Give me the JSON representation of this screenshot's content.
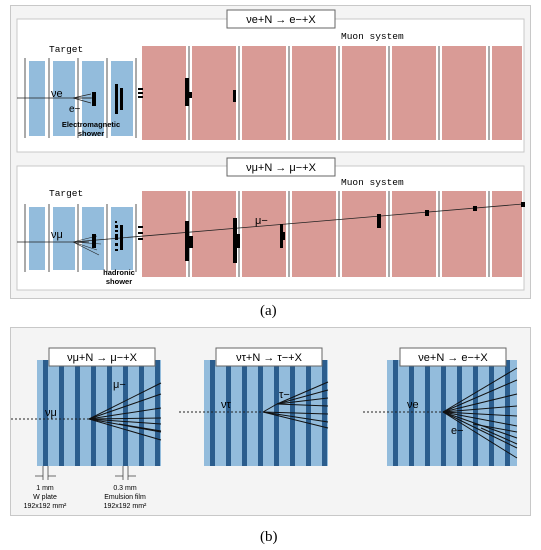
{
  "panel_a": {
    "label": "(a)",
    "top": {
      "reaction": "νe+N → e−+X",
      "target_label": "Target",
      "muon_label": "Muon system",
      "particle_in": "νe",
      "particle_out": "e−",
      "shower_label_line1": "Electromagnetic",
      "shower_label_line2": "shower"
    },
    "bottom": {
      "reaction": "νμ+N → μ−+X",
      "target_label": "Target",
      "muon_label": "Muon system",
      "particle_in": "νμ",
      "particle_out": "μ−",
      "shower_label_line1": "hadronic",
      "shower_label_line2": "shower"
    }
  },
  "panel_b": {
    "label": "(b)",
    "left": {
      "reaction": "νμ+N → μ−+X",
      "particle_in": "νμ",
      "particle_out": "μ−",
      "plate_label_1": "1 mm",
      "plate_label_2": "W plate",
      "plate_label_3": "192x192 mm²",
      "film_label_1": "0.3 mm",
      "film_label_2": "Emulsion film",
      "film_label_3": "192x192 mm²"
    },
    "middle": {
      "reaction": "ντ+N → τ−+X",
      "particle_in": "ντ",
      "particle_out": "τ−"
    },
    "right": {
      "reaction": "νe+N → e−+X",
      "particle_in": "νe",
      "particle_out": "e−"
    }
  },
  "colors": {
    "target_blue": "#93bcdc",
    "muon_pink": "#d99b96",
    "plate_dark": "#2b5d8d"
  }
}
